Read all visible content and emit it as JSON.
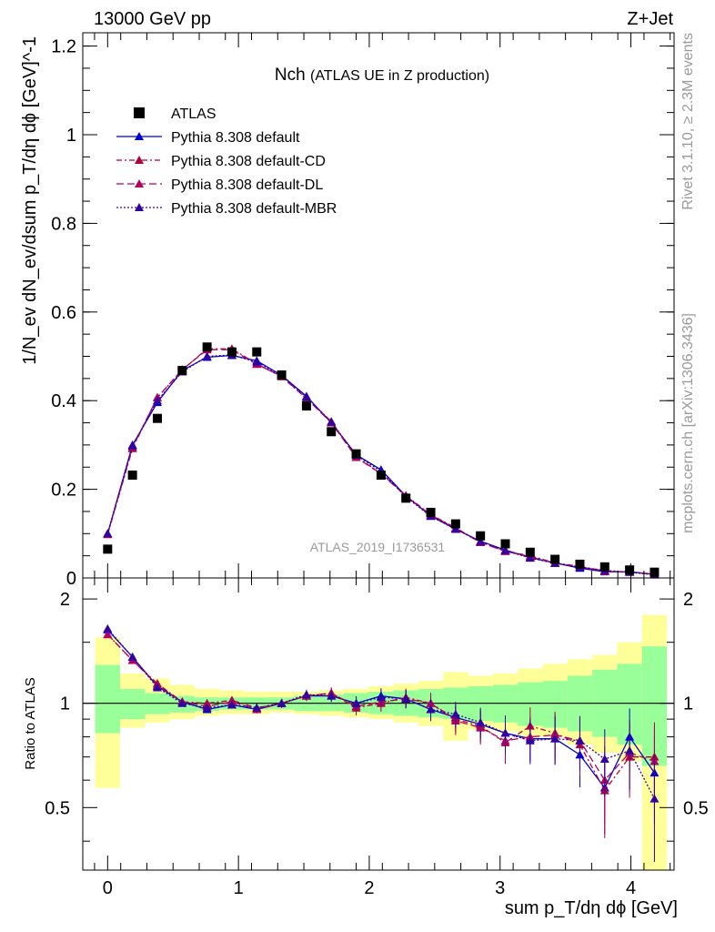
{
  "header": {
    "left": "13000 GeV pp",
    "right": "Z+Jet"
  },
  "side_labels": {
    "top": "Rivet 3.1.10, ≥ 2.3M events",
    "bottom": "mcplots.cern.ch [arXiv:1306.3436]"
  },
  "chart_data": {
    "type": "line",
    "title": "Nch",
    "subtitle": "(ATLAS UE in Z production)",
    "watermark": "ATLAS_2019_I1736531",
    "xlabel": "sum p_T/dη dϕ [GeV]",
    "ylabel": "1/N_ev dN_ev/dsum p_T/dη dϕ [GeV]^-1",
    "ratio_ylabel": "Ratio to ATLAS",
    "xlim": [
      -0.19,
      4.33
    ],
    "ylim": [
      0,
      1.23
    ],
    "ratio_ylim": [
      0.33,
      2.3
    ],
    "x_ticks": [
      "0",
      "1",
      "2",
      "3",
      "4"
    ],
    "y_ticks": [
      "0",
      "0.2",
      "0.4",
      "0.6",
      "0.8",
      "1",
      "1.2"
    ],
    "ratio_ticks": [
      "0.5",
      "1",
      "2"
    ],
    "x": [
      0,
      0.19,
      0.38,
      0.57,
      0.76,
      0.95,
      1.14,
      1.33,
      1.52,
      1.71,
      1.9,
      2.09,
      2.28,
      2.47,
      2.66,
      2.85,
      3.04,
      3.23,
      3.42,
      3.61,
      3.8,
      3.99,
      4.18
    ],
    "data": {
      "name": "ATLAS",
      "values": [
        0.065,
        0.232,
        0.36,
        0.468,
        0.521,
        0.51,
        0.51,
        0.458,
        0.388,
        0.33,
        0.28,
        0.232,
        0.18,
        0.148,
        0.122,
        0.095,
        0.077,
        0.058,
        0.042,
        0.031,
        0.025,
        0.018,
        0.013
      ]
    },
    "series": [
      {
        "name": "Pythia 8.308 default",
        "color": "#0000d4",
        "dash": "",
        "values": [
          0.1,
          0.3,
          0.396,
          0.468,
          0.498,
          0.502,
          0.49,
          0.457,
          0.41,
          0.35,
          0.278,
          0.244,
          0.185,
          0.14,
          0.11,
          0.083,
          0.063,
          0.046,
          0.034,
          0.022,
          0.014,
          0.014,
          0.008
        ],
        "ratio": [
          1.63,
          1.36,
          1.12,
          1.01,
          0.96,
          0.99,
          0.96,
          1.0,
          1.05,
          1.05,
          1.0,
          1.05,
          1.03,
          0.96,
          0.91,
          0.87,
          0.82,
          0.79,
          0.79,
          0.71,
          0.57,
          0.8,
          0.63
        ]
      },
      {
        "name": "Pythia 8.308 default-CD",
        "color": "#b00040",
        "dash": "6,3,2,3",
        "values": [
          0.098,
          0.292,
          0.407,
          0.469,
          0.517,
          0.517,
          0.483,
          0.454,
          0.405,
          0.353,
          0.273,
          0.236,
          0.186,
          0.143,
          0.113,
          0.081,
          0.06,
          0.05,
          0.034,
          0.026,
          0.016,
          0.013,
          0.009
        ],
        "ratio": [
          1.58,
          1.33,
          1.14,
          1.01,
          1.0,
          1.02,
          0.97,
          1.0,
          1.05,
          1.07,
          0.97,
          1.0,
          1.04,
          1.0,
          0.9,
          0.86,
          0.77,
          0.86,
          0.82,
          0.76,
          0.56,
          0.7,
          0.7
        ]
      },
      {
        "name": "Pythia 8.308 default-DL",
        "color": "#b00060",
        "dash": "8,4",
        "values": [
          0.099,
          0.295,
          0.407,
          0.47,
          0.515,
          0.515,
          0.482,
          0.455,
          0.405,
          0.35,
          0.272,
          0.235,
          0.185,
          0.142,
          0.112,
          0.08,
          0.06,
          0.048,
          0.033,
          0.025,
          0.015,
          0.013,
          0.009
        ],
        "ratio": [
          1.58,
          1.33,
          1.13,
          1.01,
          0.98,
          1.01,
          0.96,
          1.0,
          1.05,
          1.07,
          0.98,
          1.01,
          1.03,
          1.0,
          0.89,
          0.85,
          0.78,
          0.8,
          0.81,
          0.78,
          0.6,
          0.72,
          0.68
        ]
      },
      {
        "name": "Pythia 8.308 default-MBR",
        "color": "#3300a0",
        "dash": "2,2",
        "values": [
          0.1,
          0.298,
          0.4,
          0.465,
          0.5,
          0.503,
          0.487,
          0.456,
          0.408,
          0.352,
          0.277,
          0.24,
          0.183,
          0.139,
          0.11,
          0.082,
          0.062,
          0.045,
          0.033,
          0.024,
          0.017,
          0.013,
          0.007
        ],
        "ratio": [
          1.64,
          1.36,
          1.11,
          1.0,
          0.97,
          0.99,
          0.97,
          1.0,
          1.06,
          1.05,
          1.0,
          1.04,
          1.03,
          0.96,
          0.93,
          0.88,
          0.82,
          0.78,
          0.79,
          0.78,
          0.69,
          0.73,
          0.53
        ]
      }
    ],
    "ratio_band_inner": [
      [
        0.82,
        1.29
      ],
      [
        0.9,
        1.1
      ],
      [
        0.93,
        1.07
      ],
      [
        0.94,
        1.05
      ],
      [
        0.95,
        1.04
      ],
      [
        0.96,
        1.04
      ],
      [
        0.96,
        1.04
      ],
      [
        0.96,
        1.04
      ],
      [
        0.95,
        1.05
      ],
      [
        0.95,
        1.06
      ],
      [
        0.94,
        1.07
      ],
      [
        0.93,
        1.08
      ],
      [
        0.92,
        1.09
      ],
      [
        0.91,
        1.1
      ],
      [
        0.9,
        1.11
      ],
      [
        0.89,
        1.12
      ],
      [
        0.88,
        1.13
      ],
      [
        0.86,
        1.15
      ],
      [
        0.85,
        1.16
      ],
      [
        0.83,
        1.2
      ],
      [
        0.8,
        1.25
      ],
      [
        0.76,
        1.3
      ],
      [
        0.66,
        1.46
      ]
    ],
    "ratio_band_outer": [
      [
        0.57,
        1.55
      ],
      [
        0.85,
        1.22
      ],
      [
        0.88,
        1.18
      ],
      [
        0.9,
        1.13
      ],
      [
        0.92,
        1.1
      ],
      [
        0.93,
        1.09
      ],
      [
        0.93,
        1.08
      ],
      [
        0.94,
        1.08
      ],
      [
        0.93,
        1.08
      ],
      [
        0.92,
        1.09
      ],
      [
        0.91,
        1.1
      ],
      [
        0.9,
        1.12
      ],
      [
        0.88,
        1.14
      ],
      [
        0.86,
        1.16
      ],
      [
        0.78,
        1.23
      ],
      [
        0.84,
        1.2
      ],
      [
        0.83,
        1.22
      ],
      [
        0.8,
        1.26
      ],
      [
        0.8,
        1.3
      ],
      [
        0.76,
        1.34
      ],
      [
        0.72,
        1.38
      ],
      [
        0.68,
        1.5
      ],
      [
        0.33,
        1.8
      ]
    ],
    "colors": {
      "band_inner": "#99ff99",
      "band_outer": "#ffff99",
      "data": "#000000"
    }
  }
}
